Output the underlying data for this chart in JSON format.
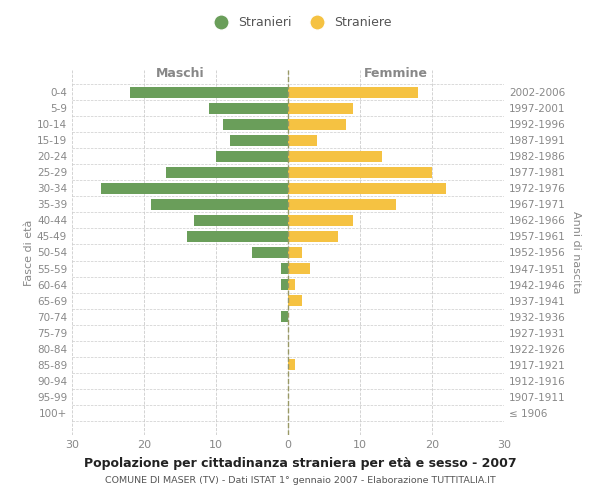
{
  "age_groups": [
    "0-4",
    "5-9",
    "10-14",
    "15-19",
    "20-24",
    "25-29",
    "30-34",
    "35-39",
    "40-44",
    "45-49",
    "50-54",
    "55-59",
    "60-64",
    "65-69",
    "70-74",
    "75-79",
    "80-84",
    "85-89",
    "90-94",
    "95-99",
    "100+"
  ],
  "birth_years": [
    "2002-2006",
    "1997-2001",
    "1992-1996",
    "1987-1991",
    "1982-1986",
    "1977-1981",
    "1972-1976",
    "1967-1971",
    "1962-1966",
    "1957-1961",
    "1952-1956",
    "1947-1951",
    "1942-1946",
    "1937-1941",
    "1932-1936",
    "1927-1931",
    "1922-1926",
    "1917-1921",
    "1912-1916",
    "1907-1911",
    "≤ 1906"
  ],
  "males": [
    22,
    11,
    9,
    8,
    10,
    17,
    26,
    19,
    13,
    14,
    5,
    1,
    1,
    0,
    1,
    0,
    0,
    0,
    0,
    0,
    0
  ],
  "females": [
    18,
    9,
    8,
    4,
    13,
    20,
    22,
    15,
    9,
    7,
    2,
    3,
    1,
    2,
    0,
    0,
    0,
    1,
    0,
    0,
    0
  ],
  "male_color": "#6a9e5a",
  "female_color": "#f5c242",
  "male_label": "Stranieri",
  "female_label": "Straniere",
  "title": "Popolazione per cittadinanza straniera per età e sesso - 2007",
  "subtitle": "COMUNE DI MASER (TV) - Dati ISTAT 1° gennaio 2007 - Elaborazione TUTTITALIA.IT",
  "xlabel_left": "Maschi",
  "xlabel_right": "Femmine",
  "ylabel_left": "Fasce di età",
  "ylabel_right": "Anni di nascita",
  "xlim": 30,
  "background_color": "#ffffff",
  "grid_color": "#cccccc",
  "text_color": "#888888",
  "center_line_color": "#999966"
}
